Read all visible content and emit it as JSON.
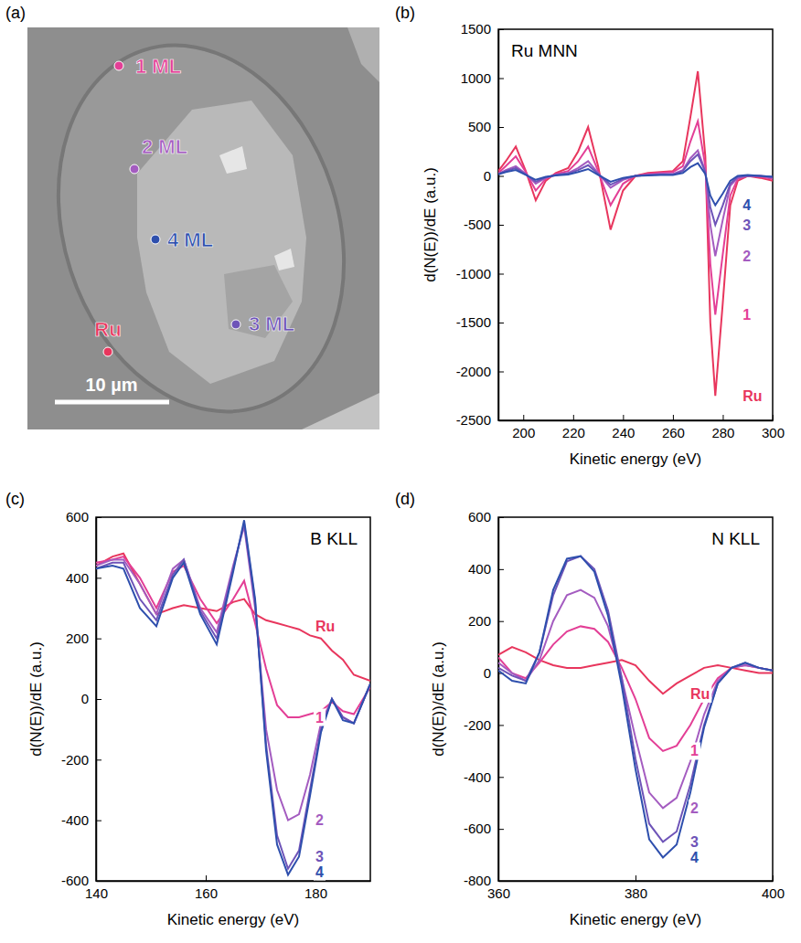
{
  "chart_data": [
    {
      "type": "image",
      "panel_label": "(a)",
      "annotations": [
        {
          "text": "1 ML",
          "color": "#e33f96"
        },
        {
          "text": "2 ML",
          "color": "#a45cc0"
        },
        {
          "text": "4 ML",
          "color": "#2e4fad"
        },
        {
          "text": "3 ML",
          "color": "#6e54b8"
        },
        {
          "text": "Ru",
          "color": "#e8365d"
        }
      ],
      "scale_bar": "10 µm"
    },
    {
      "type": "line",
      "panel_label": "(b)",
      "title": "Ru MNN",
      "x_label": "Kinetic energy (eV)",
      "y_label": "d(N(E))/dE (a.u.)",
      "xlim": [
        190,
        300
      ],
      "xticks": [
        200,
        220,
        240,
        260,
        280,
        300
      ],
      "ylim": [
        -2500,
        1500
      ],
      "yticks": [
        -2500,
        -2000,
        -1500,
        -1000,
        -500,
        0,
        500,
        1000,
        1500
      ],
      "x": [
        190,
        193,
        197,
        201,
        205,
        209,
        213,
        218,
        222,
        226,
        230,
        235,
        240,
        245,
        250,
        255,
        260,
        264,
        267,
        270,
        273,
        275,
        277,
        280,
        283,
        286,
        290,
        295,
        300
      ],
      "series": [
        {
          "name": "Ru",
          "color": "#e8365d",
          "values": [
            50,
            150,
            300,
            50,
            -250,
            -50,
            30,
            80,
            250,
            500,
            100,
            -550,
            -150,
            0,
            30,
            40,
            50,
            150,
            600,
            1070,
            200,
            -1500,
            -2250,
            -1300,
            -300,
            -50,
            0,
            -20,
            -50
          ]
        },
        {
          "name": "1",
          "color": "#e33f96",
          "values": [
            30,
            100,
            200,
            40,
            -150,
            -30,
            20,
            50,
            150,
            300,
            50,
            -300,
            -80,
            0,
            20,
            30,
            40,
            100,
            350,
            560,
            100,
            -900,
            -1420,
            -800,
            -200,
            -30,
            0,
            -10,
            -30
          ]
        },
        {
          "name": "2",
          "color": "#a45cc0",
          "values": [
            20,
            60,
            100,
            20,
            -80,
            -20,
            10,
            30,
            80,
            150,
            30,
            -120,
            -40,
            0,
            10,
            20,
            20,
            60,
            180,
            260,
            50,
            -500,
            -820,
            -450,
            -100,
            -20,
            0,
            0,
            -20
          ]
        },
        {
          "name": "3",
          "color": "#6e54b8",
          "values": [
            20,
            50,
            80,
            15,
            -60,
            -15,
            10,
            25,
            60,
            110,
            20,
            -90,
            -30,
            0,
            10,
            15,
            15,
            50,
            150,
            220,
            40,
            -320,
            -500,
            -300,
            -80,
            -10,
            0,
            0,
            -10
          ]
        },
        {
          "name": "4",
          "color": "#2e4fad",
          "values": [
            15,
            40,
            60,
            10,
            -40,
            -10,
            5,
            15,
            40,
            70,
            10,
            -60,
            -20,
            0,
            5,
            10,
            10,
            30,
            90,
            130,
            20,
            -200,
            -300,
            -180,
            -50,
            0,
            10,
            0,
            -10
          ]
        }
      ]
    },
    {
      "type": "line",
      "panel_label": "(c)",
      "title": "B KLL",
      "x_label": "Kinetic energy (eV)",
      "y_label": "d(N(E))/dE (a.u.)",
      "xlim": [
        140,
        190
      ],
      "xticks": [
        140,
        160,
        180
      ],
      "ylim": [
        -600,
        600
      ],
      "yticks": [
        -600,
        -400,
        -200,
        0,
        200,
        400,
        600
      ],
      "x": [
        140,
        143,
        145,
        148,
        151,
        154,
        156,
        159,
        162,
        165,
        167,
        169,
        171,
        173,
        175,
        177,
        179,
        181,
        183,
        185,
        187,
        190
      ],
      "series": [
        {
          "name": "Ru",
          "color": "#e8365d",
          "values": [
            440,
            470,
            480,
            380,
            280,
            300,
            310,
            300,
            290,
            320,
            330,
            280,
            260,
            250,
            240,
            230,
            210,
            200,
            160,
            130,
            80,
            60
          ]
        },
        {
          "name": "1",
          "color": "#e33f96",
          "values": [
            450,
            460,
            470,
            400,
            300,
            420,
            440,
            330,
            250,
            330,
            390,
            250,
            100,
            -20,
            -60,
            -60,
            -50,
            -40,
            -10,
            -40,
            -50,
            40
          ]
        },
        {
          "name": "2",
          "color": "#a45cc0",
          "values": [
            440,
            460,
            460,
            380,
            280,
            430,
            460,
            300,
            220,
            440,
            570,
            300,
            -100,
            -300,
            -400,
            -380,
            -250,
            -80,
            0,
            -60,
            -80,
            50
          ]
        },
        {
          "name": "3",
          "color": "#6e54b8",
          "values": [
            430,
            450,
            450,
            330,
            260,
            410,
            460,
            290,
            200,
            430,
            580,
            320,
            -150,
            -450,
            -560,
            -500,
            -300,
            -100,
            0,
            -60,
            -80,
            50
          ]
        },
        {
          "name": "4",
          "color": "#2e4fad",
          "values": [
            430,
            440,
            430,
            300,
            240,
            400,
            450,
            280,
            180,
            420,
            590,
            330,
            -170,
            -480,
            -580,
            -520,
            -320,
            -110,
            0,
            -70,
            -80,
            50
          ]
        }
      ]
    },
    {
      "type": "line",
      "panel_label": "(d)",
      "title": "N KLL",
      "x_label": "Kinetic energy (eV)",
      "y_label": "d(N(E))/dE (a.u.)",
      "xlim": [
        360,
        400
      ],
      "xticks": [
        360,
        380,
        400
      ],
      "ylim": [
        -800,
        600
      ],
      "yticks": [
        -800,
        -600,
        -400,
        -200,
        0,
        200,
        400,
        600
      ],
      "x": [
        360,
        362,
        364,
        366,
        368,
        370,
        372,
        374,
        376,
        378,
        380,
        382,
        384,
        386,
        388,
        390,
        392,
        394,
        396,
        398,
        400
      ],
      "series": [
        {
          "name": "Ru",
          "color": "#e8365d",
          "values": [
            70,
            100,
            80,
            50,
            30,
            20,
            20,
            30,
            40,
            50,
            30,
            -30,
            -80,
            -40,
            -10,
            20,
            30,
            20,
            10,
            0,
            0
          ]
        },
        {
          "name": "1",
          "color": "#e33f96",
          "values": [
            60,
            0,
            -20,
            40,
            110,
            160,
            180,
            170,
            120,
            20,
            -100,
            -250,
            -300,
            -280,
            -200,
            -100,
            -20,
            20,
            30,
            20,
            10
          ]
        },
        {
          "name": "2",
          "color": "#a45cc0",
          "values": [
            40,
            0,
            -30,
            50,
            200,
            300,
            320,
            290,
            180,
            -20,
            -250,
            -460,
            -520,
            -480,
            -340,
            -160,
            -30,
            20,
            30,
            20,
            10
          ]
        },
        {
          "name": "3",
          "color": "#6e54b8",
          "values": [
            20,
            -10,
            -30,
            80,
            300,
            430,
            450,
            400,
            240,
            -20,
            -330,
            -580,
            -650,
            -610,
            -430,
            -200,
            -40,
            20,
            40,
            20,
            10
          ]
        },
        {
          "name": "4",
          "color": "#2e4fad",
          "values": [
            10,
            -30,
            -40,
            80,
            320,
            440,
            450,
            390,
            220,
            -50,
            -370,
            -640,
            -710,
            -660,
            -460,
            -210,
            -40,
            20,
            40,
            20,
            10
          ]
        }
      ]
    }
  ]
}
